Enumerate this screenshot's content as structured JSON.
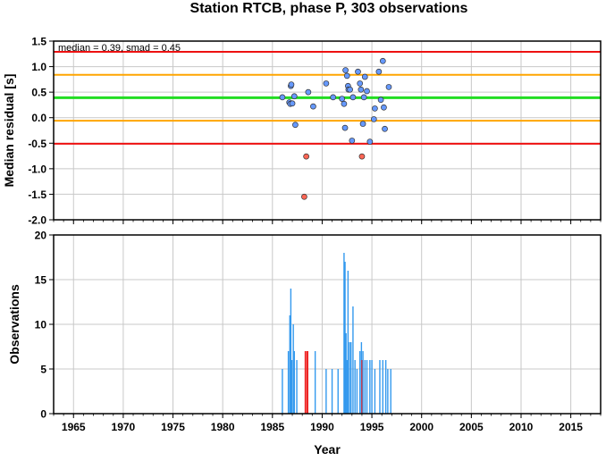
{
  "title": "Station RTCB, phase P, 303 observations",
  "colors": {
    "background": "#ffffff",
    "grid": "#c8c8c8",
    "limit_outer": "#ee1111",
    "limit_inner": "#ffa500",
    "median_line": "#22dd22",
    "point_ok": "#6699ff",
    "point_outlier": "#ff6655",
    "bar_ok": "#3399ee",
    "bar_outlier": "#ee2222"
  },
  "chart_data": [
    {
      "type": "scatter",
      "annotation": "median = 0.39, smad = 0.45",
      "xlabel": "",
      "ylabel": "Median residual [s]",
      "xlim": [
        1963,
        2018
      ],
      "ylim": [
        -2.0,
        1.5
      ],
      "yticks": [
        "-2.0",
        "-1.5",
        "-1.0",
        "-0.5",
        "0.0",
        "0.5",
        "1.0",
        "1.5"
      ],
      "grid": true,
      "hlines": [
        {
          "y": 1.29,
          "role": "outer limit"
        },
        {
          "y": 0.84,
          "role": "inner limit"
        },
        {
          "y": 0.39,
          "role": "median"
        },
        {
          "y": -0.06,
          "role": "inner limit"
        },
        {
          "y": -0.51,
          "role": "outer limit"
        }
      ],
      "series": [
        {
          "role": "within limits",
          "points": [
            [
              1986.0,
              0.4
            ],
            [
              1986.7,
              0.3
            ],
            [
              1986.8,
              0.27
            ],
            [
              1986.85,
              0.62
            ],
            [
              1986.9,
              0.65
            ],
            [
              1987.0,
              0.28
            ],
            [
              1987.2,
              0.42
            ],
            [
              1987.3,
              -0.14
            ],
            [
              1988.6,
              0.5
            ],
            [
              1989.1,
              0.22
            ],
            [
              1990.4,
              0.67
            ],
            [
              1991.1,
              0.4
            ],
            [
              1992.0,
              0.37
            ],
            [
              1992.2,
              0.27
            ],
            [
              1992.3,
              -0.2
            ],
            [
              1992.35,
              0.93
            ],
            [
              1992.5,
              0.82
            ],
            [
              1992.6,
              0.62
            ],
            [
              1992.65,
              0.55
            ],
            [
              1992.8,
              0.55
            ],
            [
              1993.0,
              -0.45
            ],
            [
              1993.1,
              0.4
            ],
            [
              1993.6,
              0.9
            ],
            [
              1993.8,
              0.67
            ],
            [
              1993.9,
              0.55
            ],
            [
              1994.1,
              -0.12
            ],
            [
              1994.2,
              0.4
            ],
            [
              1994.3,
              0.8
            ],
            [
              1994.5,
              0.52
            ],
            [
              1994.8,
              -0.47
            ],
            [
              1995.2,
              -0.03
            ],
            [
              1995.3,
              0.18
            ],
            [
              1995.7,
              0.9
            ],
            [
              1995.9,
              0.35
            ],
            [
              1996.1,
              1.11
            ],
            [
              1996.2,
              0.2
            ],
            [
              1996.3,
              -0.22
            ],
            [
              1996.7,
              0.6
            ]
          ]
        },
        {
          "role": "outlier",
          "points": [
            [
              1988.4,
              -0.76
            ],
            [
              1988.2,
              -1.55
            ],
            [
              1994.0,
              -0.76
            ]
          ]
        }
      ]
    },
    {
      "type": "bar",
      "xlabel": "Year",
      "ylabel": "Observations",
      "xlim": [
        1963,
        2018
      ],
      "ylim": [
        0,
        20
      ],
      "yticks": [
        "0",
        "5",
        "10",
        "15",
        "20"
      ],
      "xticks": [
        "1965",
        "1970",
        "1975",
        "1980",
        "1985",
        "1990",
        "1995",
        "2000",
        "2005",
        "2010",
        "2015"
      ],
      "grid": true,
      "bars": [
        {
          "x": 1986.0,
          "v": 5
        },
        {
          "x": 1986.6,
          "v": 7
        },
        {
          "x": 1986.75,
          "v": 11
        },
        {
          "x": 1986.85,
          "v": 14
        },
        {
          "x": 1986.95,
          "v": 6
        },
        {
          "x": 1987.1,
          "v": 10
        },
        {
          "x": 1987.2,
          "v": 7
        },
        {
          "x": 1987.45,
          "v": 6
        },
        {
          "x": 1988.3,
          "v": 7,
          "outlier": true
        },
        {
          "x": 1988.45,
          "v": 7,
          "outlier": true
        },
        {
          "x": 1988.55,
          "v": 7,
          "outlier": true
        },
        {
          "x": 1989.3,
          "v": 7
        },
        {
          "x": 1990.4,
          "v": 5
        },
        {
          "x": 1991.0,
          "v": 5
        },
        {
          "x": 1991.6,
          "v": 5
        },
        {
          "x": 1992.2,
          "v": 18
        },
        {
          "x": 1992.3,
          "v": 17
        },
        {
          "x": 1992.4,
          "v": 9
        },
        {
          "x": 1992.5,
          "v": 6
        },
        {
          "x": 1992.6,
          "v": 16
        },
        {
          "x": 1992.75,
          "v": 8
        },
        {
          "x": 1992.9,
          "v": 8
        },
        {
          "x": 1993.1,
          "v": 12
        },
        {
          "x": 1993.3,
          "v": 6
        },
        {
          "x": 1993.5,
          "v": 5
        },
        {
          "x": 1993.8,
          "v": 7
        },
        {
          "x": 1993.95,
          "v": 8
        },
        {
          "x": 1994.0,
          "v": 6,
          "outlier": true
        },
        {
          "x": 1994.1,
          "v": 7
        },
        {
          "x": 1994.3,
          "v": 6
        },
        {
          "x": 1994.5,
          "v": 6
        },
        {
          "x": 1994.8,
          "v": 6
        },
        {
          "x": 1995.0,
          "v": 6
        },
        {
          "x": 1995.3,
          "v": 5
        },
        {
          "x": 1995.8,
          "v": 6
        },
        {
          "x": 1996.1,
          "v": 6
        },
        {
          "x": 1996.4,
          "v": 6
        },
        {
          "x": 1996.6,
          "v": 5
        },
        {
          "x": 1996.9,
          "v": 5
        }
      ]
    }
  ]
}
